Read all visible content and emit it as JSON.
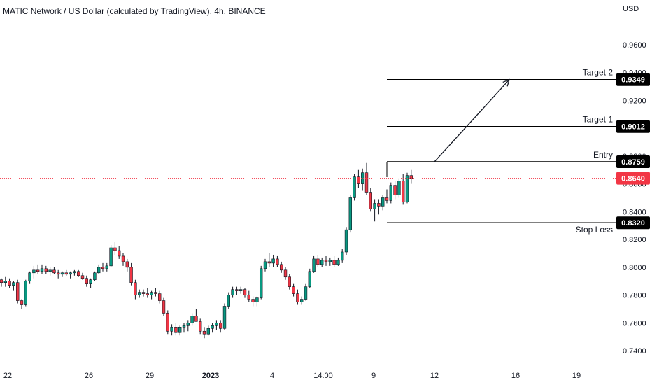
{
  "chart_data": {
    "type": "candlestick",
    "title": "MATIC Network / US Dollar (calculated by TradingView), 4h, BINANCE",
    "currency": "USD",
    "ylim": [
      0.733,
      0.972
    ],
    "y_ticks": [
      "0.9600",
      "0.9400",
      "0.9200",
      "0.8800",
      "0.8600",
      "0.8400",
      "0.8200",
      "0.8000",
      "0.7800",
      "0.7600",
      "0.7400"
    ],
    "x_ticks": [
      {
        "label": "22",
        "bold": false
      },
      {
        "label": "26",
        "bold": false
      },
      {
        "label": "29",
        "bold": false
      },
      {
        "label": "2023",
        "bold": true
      },
      {
        "label": "4",
        "bold": false
      },
      {
        "label": "14:00",
        "bold": false
      },
      {
        "label": "9",
        "bold": false
      },
      {
        "label": "12",
        "bold": false
      },
      {
        "label": "16",
        "bold": false
      },
      {
        "label": "19",
        "bold": false
      }
    ],
    "current_price": {
      "value": 0.864,
      "label": "0.8640",
      "color": "#f23645"
    },
    "levels": [
      {
        "name": "Target 2",
        "price": 0.9349,
        "label": "0.9349"
      },
      {
        "name": "Target 1",
        "price": 0.9012,
        "label": "0.9012"
      },
      {
        "name": "Entry",
        "price": 0.8759,
        "label": "0.8759"
      },
      {
        "name": "Stop Loss",
        "price": 0.832,
        "label": "0.8320"
      }
    ],
    "arrow": {
      "from_price": 0.8759,
      "to_price": 0.9349
    },
    "colors": {
      "up": "#089981",
      "down": "#f23645",
      "level": "#000000",
      "text": "#131722"
    },
    "candles": [
      [
        0.791,
        0.792,
        0.786,
        0.789
      ],
      [
        0.789,
        0.793,
        0.786,
        0.79
      ],
      [
        0.79,
        0.792,
        0.785,
        0.787
      ],
      [
        0.787,
        0.79,
        0.783,
        0.789
      ],
      [
        0.789,
        0.791,
        0.774,
        0.776
      ],
      [
        0.776,
        0.777,
        0.77,
        0.773
      ],
      [
        0.773,
        0.791,
        0.772,
        0.79
      ],
      [
        0.79,
        0.797,
        0.788,
        0.796
      ],
      [
        0.796,
        0.801,
        0.792,
        0.798
      ],
      [
        0.798,
        0.802,
        0.795,
        0.797
      ],
      [
        0.797,
        0.802,
        0.795,
        0.799
      ],
      [
        0.799,
        0.801,
        0.795,
        0.797
      ],
      [
        0.797,
        0.8,
        0.794,
        0.798
      ],
      [
        0.798,
        0.8,
        0.795,
        0.796
      ],
      [
        0.796,
        0.798,
        0.792,
        0.795
      ],
      [
        0.795,
        0.797,
        0.793,
        0.796
      ],
      [
        0.796,
        0.798,
        0.794,
        0.795
      ],
      [
        0.795,
        0.797,
        0.792,
        0.796
      ],
      [
        0.796,
        0.798,
        0.794,
        0.797
      ],
      [
        0.797,
        0.798,
        0.793,
        0.794
      ],
      [
        0.794,
        0.796,
        0.791,
        0.792
      ],
      [
        0.792,
        0.794,
        0.786,
        0.788
      ],
      [
        0.788,
        0.792,
        0.785,
        0.791
      ],
      [
        0.791,
        0.797,
        0.79,
        0.796
      ],
      [
        0.796,
        0.802,
        0.795,
        0.8
      ],
      [
        0.8,
        0.803,
        0.797,
        0.799
      ],
      [
        0.799,
        0.803,
        0.797,
        0.801
      ],
      [
        0.801,
        0.816,
        0.8,
        0.814
      ],
      [
        0.814,
        0.818,
        0.809,
        0.812
      ],
      [
        0.812,
        0.815,
        0.806,
        0.808
      ],
      [
        0.808,
        0.81,
        0.801,
        0.804
      ],
      [
        0.804,
        0.806,
        0.797,
        0.8
      ],
      [
        0.8,
        0.803,
        0.787,
        0.789
      ],
      [
        0.789,
        0.791,
        0.777,
        0.78
      ],
      [
        0.78,
        0.784,
        0.778,
        0.782
      ],
      [
        0.782,
        0.784,
        0.779,
        0.781
      ],
      [
        0.781,
        0.785,
        0.778,
        0.78
      ],
      [
        0.78,
        0.783,
        0.777,
        0.782
      ],
      [
        0.782,
        0.785,
        0.779,
        0.781
      ],
      [
        0.781,
        0.783,
        0.774,
        0.776
      ],
      [
        0.776,
        0.778,
        0.765,
        0.767
      ],
      [
        0.767,
        0.769,
        0.752,
        0.754
      ],
      [
        0.754,
        0.759,
        0.751,
        0.757
      ],
      [
        0.757,
        0.76,
        0.751,
        0.753
      ],
      [
        0.753,
        0.758,
        0.751,
        0.757
      ],
      [
        0.757,
        0.76,
        0.753,
        0.758
      ],
      [
        0.758,
        0.762,
        0.754,
        0.76
      ],
      [
        0.76,
        0.767,
        0.758,
        0.765
      ],
      [
        0.765,
        0.77,
        0.762,
        0.761
      ],
      [
        0.761,
        0.763,
        0.752,
        0.754
      ],
      [
        0.754,
        0.757,
        0.749,
        0.752
      ],
      [
        0.752,
        0.758,
        0.751,
        0.756
      ],
      [
        0.756,
        0.76,
        0.753,
        0.758
      ],
      [
        0.758,
        0.762,
        0.755,
        0.76
      ],
      [
        0.76,
        0.762,
        0.753,
        0.756
      ],
      [
        0.756,
        0.774,
        0.755,
        0.772
      ],
      [
        0.772,
        0.782,
        0.77,
        0.78
      ],
      [
        0.78,
        0.786,
        0.778,
        0.784
      ],
      [
        0.784,
        0.786,
        0.78,
        0.783
      ],
      [
        0.783,
        0.786,
        0.781,
        0.784
      ],
      [
        0.784,
        0.785,
        0.778,
        0.78
      ],
      [
        0.78,
        0.783,
        0.775,
        0.777
      ],
      [
        0.777,
        0.779,
        0.772,
        0.775
      ],
      [
        0.775,
        0.779,
        0.772,
        0.778
      ],
      [
        0.778,
        0.801,
        0.777,
        0.799
      ],
      [
        0.799,
        0.806,
        0.797,
        0.804
      ],
      [
        0.804,
        0.81,
        0.8,
        0.803
      ],
      [
        0.803,
        0.809,
        0.8,
        0.806
      ],
      [
        0.806,
        0.808,
        0.8,
        0.802
      ],
      [
        0.802,
        0.804,
        0.796,
        0.798
      ],
      [
        0.798,
        0.8,
        0.791,
        0.793
      ],
      [
        0.793,
        0.795,
        0.784,
        0.786
      ],
      [
        0.786,
        0.788,
        0.779,
        0.781
      ],
      [
        0.781,
        0.784,
        0.773,
        0.775
      ],
      [
        0.775,
        0.779,
        0.773,
        0.777
      ],
      [
        0.777,
        0.788,
        0.776,
        0.786
      ],
      [
        0.786,
        0.799,
        0.785,
        0.797
      ],
      [
        0.797,
        0.808,
        0.796,
        0.806
      ],
      [
        0.806,
        0.809,
        0.8,
        0.802
      ],
      [
        0.802,
        0.807,
        0.8,
        0.805
      ],
      [
        0.805,
        0.808,
        0.801,
        0.804
      ],
      [
        0.804,
        0.807,
        0.801,
        0.805
      ],
      [
        0.805,
        0.808,
        0.8,
        0.802
      ],
      [
        0.802,
        0.807,
        0.801,
        0.805
      ],
      [
        0.805,
        0.813,
        0.803,
        0.811
      ],
      [
        0.811,
        0.829,
        0.809,
        0.827
      ],
      [
        0.827,
        0.852,
        0.825,
        0.85
      ],
      [
        0.85,
        0.867,
        0.848,
        0.865
      ],
      [
        0.865,
        0.87,
        0.857,
        0.86
      ],
      [
        0.86,
        0.871,
        0.855,
        0.868
      ],
      [
        0.868,
        0.875,
        0.852,
        0.854
      ],
      [
        0.854,
        0.857,
        0.84,
        0.842
      ],
      [
        0.842,
        0.849,
        0.833,
        0.846
      ],
      [
        0.846,
        0.849,
        0.838,
        0.844
      ],
      [
        0.844,
        0.852,
        0.841,
        0.85
      ],
      [
        0.85,
        0.856,
        0.846,
        0.848
      ],
      [
        0.848,
        0.861,
        0.846,
        0.859
      ],
      [
        0.859,
        0.862,
        0.849,
        0.852
      ],
      [
        0.852,
        0.864,
        0.85,
        0.862
      ],
      [
        0.862,
        0.867,
        0.845,
        0.847
      ],
      [
        0.847,
        0.868,
        0.846,
        0.866
      ],
      [
        0.866,
        0.87,
        0.86,
        0.864
      ]
    ]
  }
}
